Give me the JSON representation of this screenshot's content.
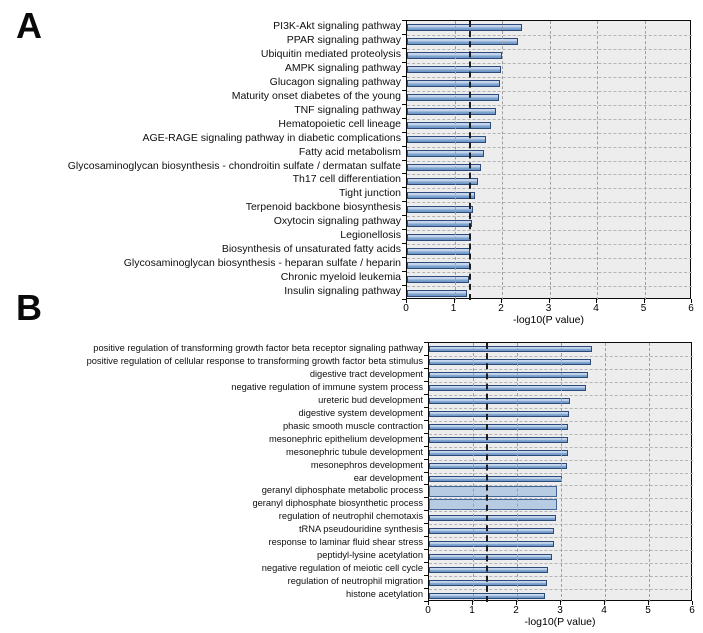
{
  "colors": {
    "bar_fill_main": "#6d95c4",
    "bar_fill_light": "#ccdaee",
    "bar_border": "#2c4a77",
    "highlight_bar_fill": "#b7cbe3",
    "plot_background": "#ededed",
    "gridline": "#a8a8a8",
    "threshold_line": "#1c1c1c"
  },
  "chart_data": [
    {
      "type": "bar",
      "panel": "A",
      "orientation": "horizontal",
      "title": "",
      "xlabel": "-log10(P value)",
      "xlim": [
        0,
        6
      ],
      "xticks": [
        0,
        1,
        2,
        3,
        4,
        5,
        6
      ],
      "grid": true,
      "threshold_line": 1.3,
      "categories": [
        "PI3K-Akt signaling pathway",
        "PPAR signaling pathway",
        "Ubiquitin mediated proteolysis",
        "AMPK signaling pathway",
        "Glucagon signaling pathway",
        "Maturity onset diabetes of the young",
        "TNF signaling pathway",
        "Hematopoietic cell lineage",
        "AGE-RAGE signaling pathway in diabetic complications",
        "Fatty acid metabolism",
        "Glycosaminoglycan biosynthesis - chondroitin sulfate / dermatan sulfate",
        "Th17 cell differentiation",
        "Tight junction",
        "Terpenoid backbone biosynthesis",
        "Oxytocin signaling pathway",
        "Legionellosis",
        "Biosynthesis of unsaturated fatty acids",
        "Glycosaminoglycan biosynthesis - heparan sulfate / heparin",
        "Chronic myeloid leukemia",
        "Insulin signaling pathway"
      ],
      "values": [
        2.42,
        2.33,
        2.0,
        1.98,
        1.96,
        1.93,
        1.88,
        1.77,
        1.67,
        1.62,
        1.56,
        1.49,
        1.43,
        1.38,
        1.37,
        1.35,
        1.33,
        1.32,
        1.3,
        1.27
      ],
      "highlight_indices": []
    },
    {
      "type": "bar",
      "panel": "B",
      "orientation": "horizontal",
      "title": "",
      "xlabel": "-log10(P value)",
      "xlim": [
        0,
        6
      ],
      "xticks": [
        0,
        1,
        2,
        3,
        4,
        5,
        6
      ],
      "grid": true,
      "threshold_line": 1.3,
      "categories": [
        "positive regulation of transforming growth factor beta receptor signaling pathway",
        "positive regulation of cellular response to transforming growth factor beta stimulus",
        "digestive tract development",
        "negative regulation of immune system process",
        "ureteric bud development",
        "digestive system development",
        "phasic smooth muscle contraction",
        "mesonephric epithelium development",
        "mesonephric tubule development",
        "mesonephros development",
        "ear development",
        "geranyl diphosphate metabolic process",
        "geranyl diphosphate biosynthetic process",
        "regulation of neutrophil chemotaxis",
        "tRNA pseudouridine synthesis",
        "response to laminar fluid shear stress",
        "peptidyl-lysine acetylation",
        "negative regulation of meiotic cell cycle",
        "regulation of neutrophil migration",
        "histone acetylation"
      ],
      "values": [
        3.7,
        3.68,
        3.61,
        3.57,
        3.21,
        3.19,
        3.17,
        3.16,
        3.15,
        3.13,
        3.02,
        2.92,
        2.91,
        2.89,
        2.84,
        2.83,
        2.8,
        2.7,
        2.68,
        2.63
      ],
      "highlight_indices": [
        11,
        12
      ]
    }
  ]
}
